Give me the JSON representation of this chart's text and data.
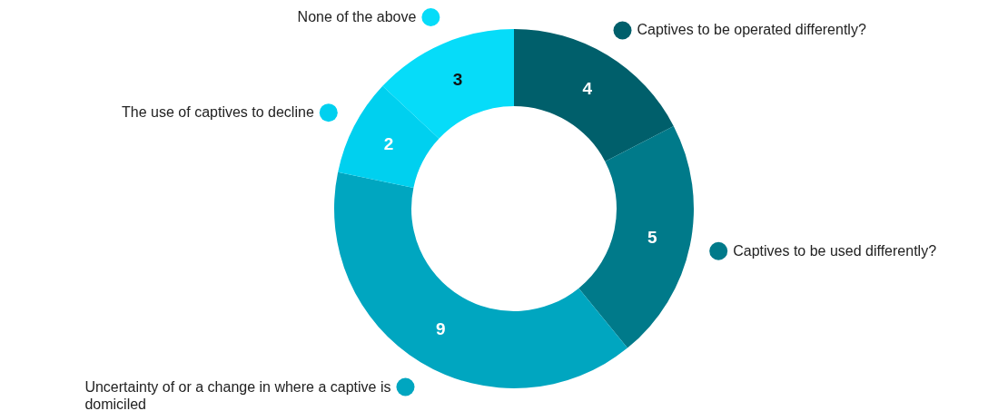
{
  "chart_data": {
    "type": "donut",
    "categories": [
      "Captives to be operated differently?",
      "Captives to be used differently?",
      "Uncertainty of or a change in where a captive is domiciled",
      "The use of captives to decline",
      "None of the above"
    ],
    "values": [
      4,
      5,
      9,
      2,
      3
    ],
    "colors": [
      "#005f6b",
      "#007a8a",
      "#00a6c0",
      "#00d0ef",
      "#06dcf9"
    ],
    "data_labels": true,
    "legend": "left"
  }
}
